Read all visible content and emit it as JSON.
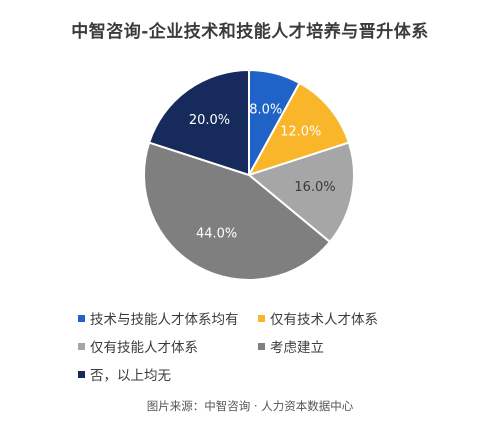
{
  "chart_data": {
    "type": "pie",
    "title": "中智咨询-企业技术和技能人才培养与晋升体系",
    "slices": [
      {
        "name": "技术与技能人才体系均有",
        "value": 8.0,
        "label": "8.0%",
        "color": "#1f63c6",
        "label_color": "#ffffff"
      },
      {
        "name": "仅有技术人才体系",
        "value": 12.0,
        "label": "12.0%",
        "color": "#f9b62b",
        "label_color": "#ffffff"
      },
      {
        "name": "仅有技能人才体系",
        "value": 16.0,
        "label": "16.0%",
        "color": "#a6a6a6",
        "label_color": "#3b3b3b"
      },
      {
        "name": "考虑建立",
        "value": 44.0,
        "label": "44.0%",
        "color": "#7f7f7f",
        "label_color": "#ffffff"
      },
      {
        "name": "否，以上均无",
        "value": 20.0,
        "label": "20.0%",
        "color": "#172a5c",
        "label_color": "#ffffff"
      }
    ],
    "start_angle": "12 o'clock",
    "direction": "clockwise",
    "legend_position": "bottom"
  },
  "source": "图片来源：中智咨询 · 人力资本数据中心"
}
